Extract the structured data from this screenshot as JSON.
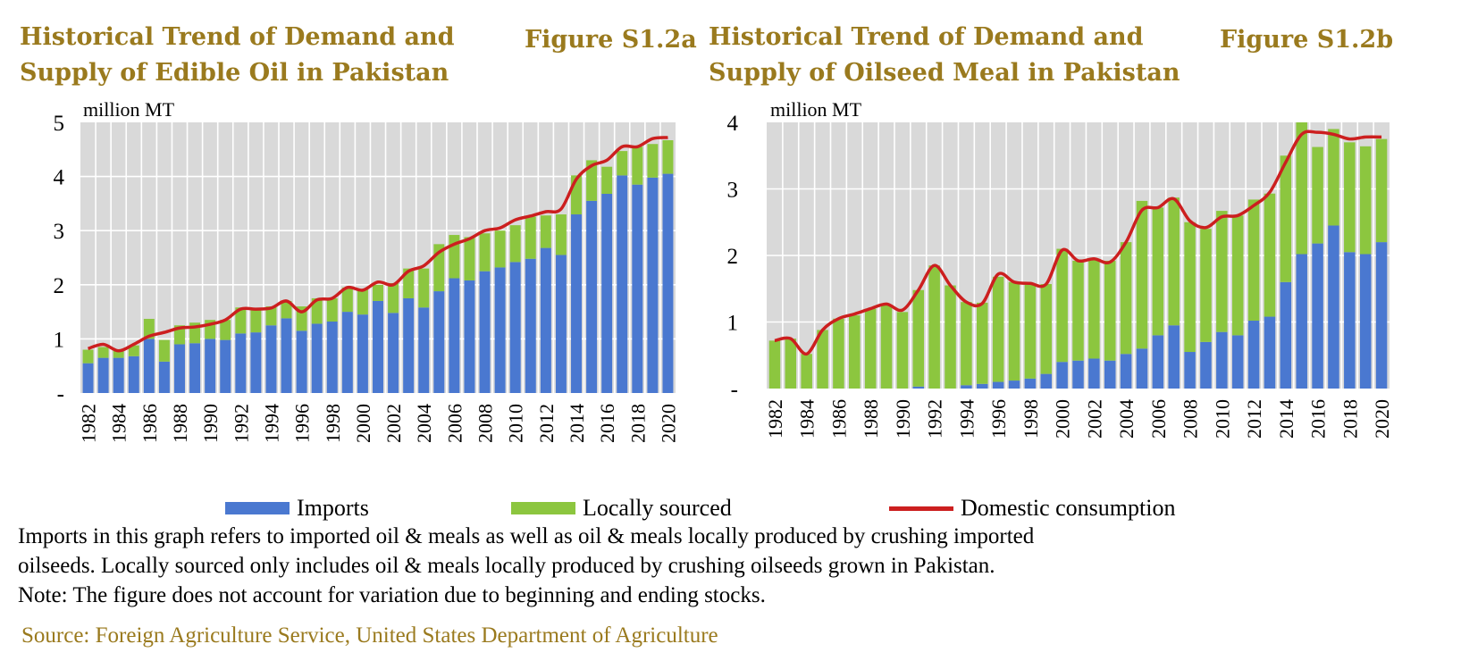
{
  "figures": [
    {
      "title_line1": "Historical Trend of Demand and",
      "title_line2": "Supply of Edible Oil in Pakistan",
      "figure_label": "Figure S1.2a"
    },
    {
      "title_line1": "Historical Trend of Demand and",
      "title_line2": "Supply of  Oilseed Meal in Pakistan",
      "figure_label": "Figure S1.2b"
    }
  ],
  "legend": {
    "imports": "Imports",
    "local": "Locally sourced",
    "consumption": "Domestic consumption"
  },
  "notes": {
    "line1": "Imports in this graph refers to imported oil & meals as well as oil & meals locally produced by crushing imported",
    "line2": "oilseeds. Locally sourced only includes oil & meals locally produced by crushing oilseeds grown in Pakistan.",
    "line3": "Note: The figure does not account for variation due to beginning and ending stocks.",
    "source": "Source: Foreign Agriculture Service, United States Department of Agriculture"
  },
  "colors": {
    "imports": "#4a78d0",
    "local": "#8cc63f",
    "consumption": "#cc1f1f",
    "plot_bg": "#d9d9d9",
    "grid": "#ffffff"
  },
  "chart_data": [
    {
      "type": "bar",
      "stacked": true,
      "ylabel": "million MT",
      "ylim": [
        0,
        5
      ],
      "yticks": [
        0,
        1,
        2,
        3,
        4,
        5
      ],
      "ytick_labels": [
        "-",
        "1",
        "2",
        "3",
        "4",
        "5"
      ],
      "x": [
        1982,
        1983,
        1984,
        1985,
        1986,
        1987,
        1988,
        1989,
        1990,
        1991,
        1992,
        1993,
        1994,
        1995,
        1996,
        1997,
        1998,
        1999,
        2000,
        2001,
        2002,
        2003,
        2004,
        2005,
        2006,
        2007,
        2008,
        2009,
        2010,
        2011,
        2012,
        2013,
        2014,
        2015,
        2016,
        2017,
        2018,
        2019,
        2020
      ],
      "xtick_labels": [
        "1982",
        "1984",
        "1986",
        "1988",
        "1990",
        "1992",
        "1994",
        "1996",
        "1998",
        "2000",
        "2002",
        "2004",
        "2006",
        "2008",
        "2010",
        "2012",
        "2014",
        "2016",
        "2018",
        "2020"
      ],
      "grid": true,
      "series": [
        {
          "name": "Imports",
          "kind": "bar",
          "values": [
            0.55,
            0.65,
            0.65,
            0.68,
            1.0,
            0.58,
            0.9,
            0.92,
            1.0,
            0.98,
            1.1,
            1.12,
            1.25,
            1.38,
            1.15,
            1.28,
            1.32,
            1.5,
            1.45,
            1.7,
            1.48,
            1.75,
            1.58,
            1.88,
            2.12,
            2.08,
            2.25,
            2.32,
            2.42,
            2.48,
            2.68,
            2.55,
            3.3,
            3.55,
            3.68,
            4.02,
            3.85,
            3.98,
            4.05
          ]
        },
        {
          "name": "Locally sourced",
          "kind": "bar",
          "values": [
            0.25,
            0.2,
            0.15,
            0.2,
            0.37,
            0.4,
            0.35,
            0.38,
            0.35,
            0.37,
            0.48,
            0.43,
            0.35,
            0.32,
            0.45,
            0.47,
            0.43,
            0.45,
            0.47,
            0.3,
            0.55,
            0.55,
            0.72,
            0.87,
            0.8,
            0.8,
            0.7,
            0.68,
            0.68,
            0.78,
            0.6,
            0.75,
            0.72,
            0.75,
            0.5,
            0.45,
            0.7,
            0.62,
            0.62
          ]
        },
        {
          "name": "Domestic consumption",
          "kind": "line",
          "values": [
            0.82,
            0.9,
            0.78,
            0.9,
            1.05,
            1.12,
            1.2,
            1.22,
            1.27,
            1.35,
            1.55,
            1.55,
            1.57,
            1.7,
            1.5,
            1.72,
            1.75,
            1.95,
            1.9,
            2.05,
            2.0,
            2.25,
            2.35,
            2.6,
            2.75,
            2.85,
            3.0,
            3.05,
            3.2,
            3.27,
            3.35,
            3.4,
            3.95,
            4.2,
            4.3,
            4.55,
            4.55,
            4.7,
            4.72
          ]
        }
      ]
    },
    {
      "type": "bar",
      "stacked": true,
      "ylabel": "million MT",
      "ylim": [
        0,
        4
      ],
      "yticks": [
        0,
        1,
        2,
        3,
        4
      ],
      "ytick_labels": [
        "-",
        "1",
        "2",
        "3",
        "4"
      ],
      "x": [
        1982,
        1983,
        1984,
        1985,
        1986,
        1987,
        1988,
        1989,
        1990,
        1991,
        1992,
        1993,
        1994,
        1995,
        1996,
        1997,
        1998,
        1999,
        2000,
        2001,
        2002,
        2003,
        2004,
        2005,
        2006,
        2007,
        2008,
        2009,
        2010,
        2011,
        2012,
        2013,
        2014,
        2015,
        2016,
        2017,
        2018,
        2019,
        2020
      ],
      "xtick_labels": [
        "1982",
        "1984",
        "1986",
        "1988",
        "1990",
        "1992",
        "1994",
        "1996",
        "1998",
        "2000",
        "2002",
        "2004",
        "2006",
        "2008",
        "2010",
        "2012",
        "2014",
        "2016",
        "2018",
        "2020"
      ],
      "grid": true,
      "series": [
        {
          "name": "Imports",
          "kind": "bar",
          "values": [
            0,
            0,
            0,
            0,
            0,
            0,
            0,
            0,
            0,
            0.03,
            0,
            0,
            0.05,
            0.07,
            0.1,
            0.12,
            0.15,
            0.22,
            0.4,
            0.42,
            0.45,
            0.42,
            0.52,
            0.6,
            0.8,
            0.95,
            0.55,
            0.7,
            0.85,
            0.8,
            1.02,
            1.08,
            1.6,
            2.02,
            2.18,
            2.45,
            2.05,
            2.02,
            2.2
          ]
        },
        {
          "name": "Locally sourced",
          "kind": "bar",
          "values": [
            0.72,
            0.75,
            0.52,
            0.88,
            1.05,
            1.1,
            1.2,
            1.25,
            1.15,
            1.45,
            1.85,
            1.55,
            1.25,
            1.22,
            1.58,
            1.48,
            1.42,
            1.35,
            1.7,
            1.5,
            1.5,
            1.5,
            1.68,
            2.22,
            1.92,
            1.92,
            1.95,
            1.7,
            1.82,
            1.8,
            1.82,
            1.85,
            1.9,
            1.98,
            1.45,
            1.45,
            1.65,
            1.62,
            1.55
          ]
        },
        {
          "name": "Domestic consumption",
          "kind": "line",
          "values": [
            0.72,
            0.75,
            0.52,
            0.88,
            1.05,
            1.12,
            1.2,
            1.27,
            1.18,
            1.48,
            1.85,
            1.55,
            1.3,
            1.28,
            1.72,
            1.6,
            1.58,
            1.57,
            2.08,
            1.92,
            1.95,
            1.9,
            2.2,
            2.68,
            2.72,
            2.85,
            2.52,
            2.42,
            2.58,
            2.6,
            2.75,
            2.95,
            3.4,
            3.82,
            3.85,
            3.82,
            3.75,
            3.78,
            3.78
          ]
        }
      ]
    }
  ]
}
